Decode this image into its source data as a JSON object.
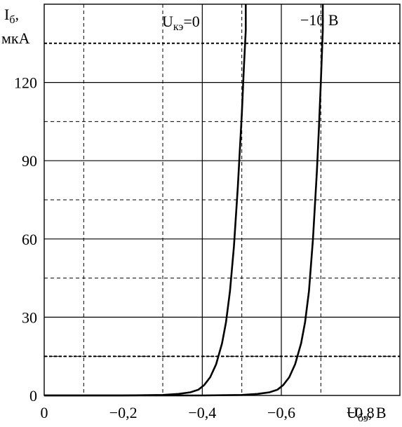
{
  "chart_data": {
    "type": "line",
    "xlim": [
      0,
      -0.9
    ],
    "ylim": [
      0,
      150
    ],
    "x_ticks": [
      {
        "value": 0,
        "label": "0"
      },
      {
        "value": -0.2,
        "label": "−0,2"
      },
      {
        "value": -0.4,
        "label": "−0,4"
      },
      {
        "value": -0.6,
        "label": "−0,6"
      },
      {
        "value": -0.8,
        "label": "−0,8"
      }
    ],
    "y_ticks": [
      {
        "value": 0,
        "label": "0"
      },
      {
        "value": 30,
        "label": "30"
      },
      {
        "value": 60,
        "label": "60"
      },
      {
        "value": 90,
        "label": "90"
      },
      {
        "value": 120,
        "label": "120"
      }
    ],
    "xgrid_solid": [
      -0.4,
      -0.6
    ],
    "xgrid_dashed": [
      -0.1,
      -0.3,
      -0.5,
      -0.7,
      -0.9
    ],
    "ygrid_solid": [
      30,
      60,
      90,
      120
    ],
    "ygrid_dashed": [
      15,
      45,
      75,
      105
    ],
    "ygrid_bold_dashed": [
      15,
      135
    ],
    "ylabel_main": "I",
    "ylabel_sub": "б",
    "ylabel_suffix": ",",
    "ylabel_unit": "мкА",
    "xlabel_main": "U",
    "xlabel_sub": "бэ",
    "xlabel_unit": ", В",
    "series": [
      {
        "label_main": "U",
        "label_sub": "кэ",
        "label_suffix": "=0",
        "x": [
          0,
          -0.2,
          -0.3,
          -0.34,
          -0.37,
          -0.39,
          -0.405,
          -0.42,
          -0.435,
          -0.45,
          -0.46,
          -0.47,
          -0.48,
          -0.49,
          -0.5,
          -0.505,
          -0.51,
          -0.51
        ],
        "y": [
          0,
          0,
          0.2,
          0.6,
          1.2,
          2.2,
          4,
          7,
          12,
          20,
          28,
          40,
          57,
          80,
          108,
          125,
          140,
          150
        ]
      },
      {
        "label_main": "−10 В",
        "label_sub": "",
        "label_suffix": "",
        "x": [
          0,
          -0.4,
          -0.5,
          -0.54,
          -0.57,
          -0.59,
          -0.605,
          -0.62,
          -0.635,
          -0.65,
          -0.66,
          -0.67,
          -0.68,
          -0.69,
          -0.695,
          -0.7,
          -0.705,
          -0.705
        ],
        "y": [
          0,
          0,
          0.2,
          0.6,
          1.2,
          2.2,
          4,
          7,
          12,
          20,
          28,
          40,
          60,
          86,
          102,
          120,
          140,
          150
        ]
      }
    ],
    "colors": {
      "line": "#000000",
      "grid": "#000000",
      "background": "#ffffff"
    }
  }
}
